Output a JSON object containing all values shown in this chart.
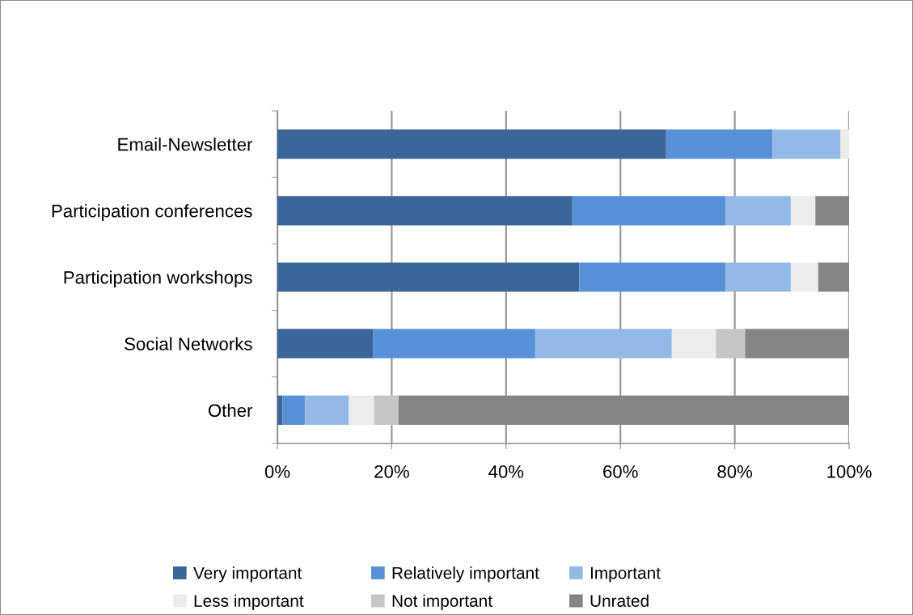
{
  "chart_data": {
    "type": "bar",
    "orientation": "horizontal",
    "stacked": true,
    "categories": [
      "Email-Newsletter",
      "Participation conferences",
      "Participation workshops",
      "Social Networks",
      "Other"
    ],
    "series": [
      {
        "name": "Very important",
        "color": "#3c6699",
        "values": [
          68.0,
          51.6,
          52.8,
          16.7,
          0.9
        ]
      },
      {
        "name": "Relatively important",
        "color": "#5891d8",
        "values": [
          18.6,
          26.8,
          25.6,
          28.4,
          3.9
        ]
      },
      {
        "name": "Important",
        "color": "#95b9e7",
        "values": [
          11.9,
          11.4,
          11.4,
          23.9,
          7.7
        ]
      },
      {
        "name": "Less important",
        "color": "#ececec",
        "values": [
          1.5,
          4.3,
          4.8,
          7.7,
          4.4
        ]
      },
      {
        "name": "Not important",
        "color": "#c6c6c6",
        "values": [
          0,
          0,
          0,
          5.1,
          4.3
        ]
      },
      {
        "name": "Unrated",
        "color": "#858585",
        "values": [
          0,
          5.9,
          5.4,
          18.2,
          78.8
        ]
      }
    ],
    "xlim": [
      0,
      100
    ],
    "xticks": [
      {
        "value": 0,
        "label": "0%"
      },
      {
        "value": 20,
        "label": "20%"
      },
      {
        "value": 40,
        "label": "40%"
      },
      {
        "value": 60,
        "label": "60%"
      },
      {
        "value": 80,
        "label": "80%"
      },
      {
        "value": 100,
        "label": "100%"
      }
    ],
    "grid": "x",
    "legend": "bottom"
  }
}
